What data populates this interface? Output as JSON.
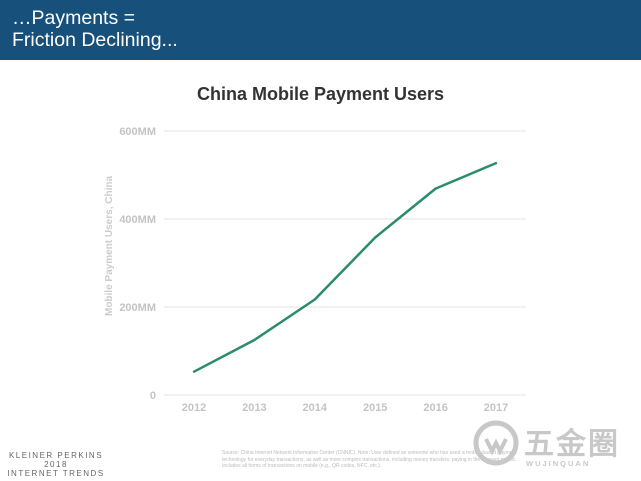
{
  "header": {
    "title": "…Payments =\nFriction Declining..."
  },
  "chart_data": {
    "type": "line",
    "title": "China Mobile Payment Users",
    "xlabel": "",
    "ylabel": "Mobile Payment Users, China",
    "categories": [
      "2012",
      "2013",
      "2014",
      "2015",
      "2016",
      "2017"
    ],
    "series": [
      {
        "values": [
          53,
          125,
          217,
          358,
          469,
          527
        ],
        "color": "#2a8c6c"
      }
    ],
    "ylim": [
      0,
      600
    ],
    "yticks": [
      {
        "value": 0,
        "label": "0"
      },
      {
        "value": 200,
        "label": "200MM"
      },
      {
        "value": 400,
        "label": "400MM"
      },
      {
        "value": 600,
        "label": "600MM"
      }
    ],
    "grid": true
  },
  "footer": {
    "brand_line1": "KLEINER PERKINS",
    "brand_line2": "2018",
    "brand_line3": "INTERNET TRENDS",
    "source": "Source: China Internet Network Information Center (CNNIC). Note: User defined as someone who has used a mobile-based payment technology for everyday transactions, as well as more complex transactions, including money transfers, paying in the relevant period. Includes all forms of transactions on mobile (e.g., QR codes, NFC, etc.)."
  },
  "watermark": {
    "cn": "五金圈",
    "en": "WUJINQUAN"
  }
}
